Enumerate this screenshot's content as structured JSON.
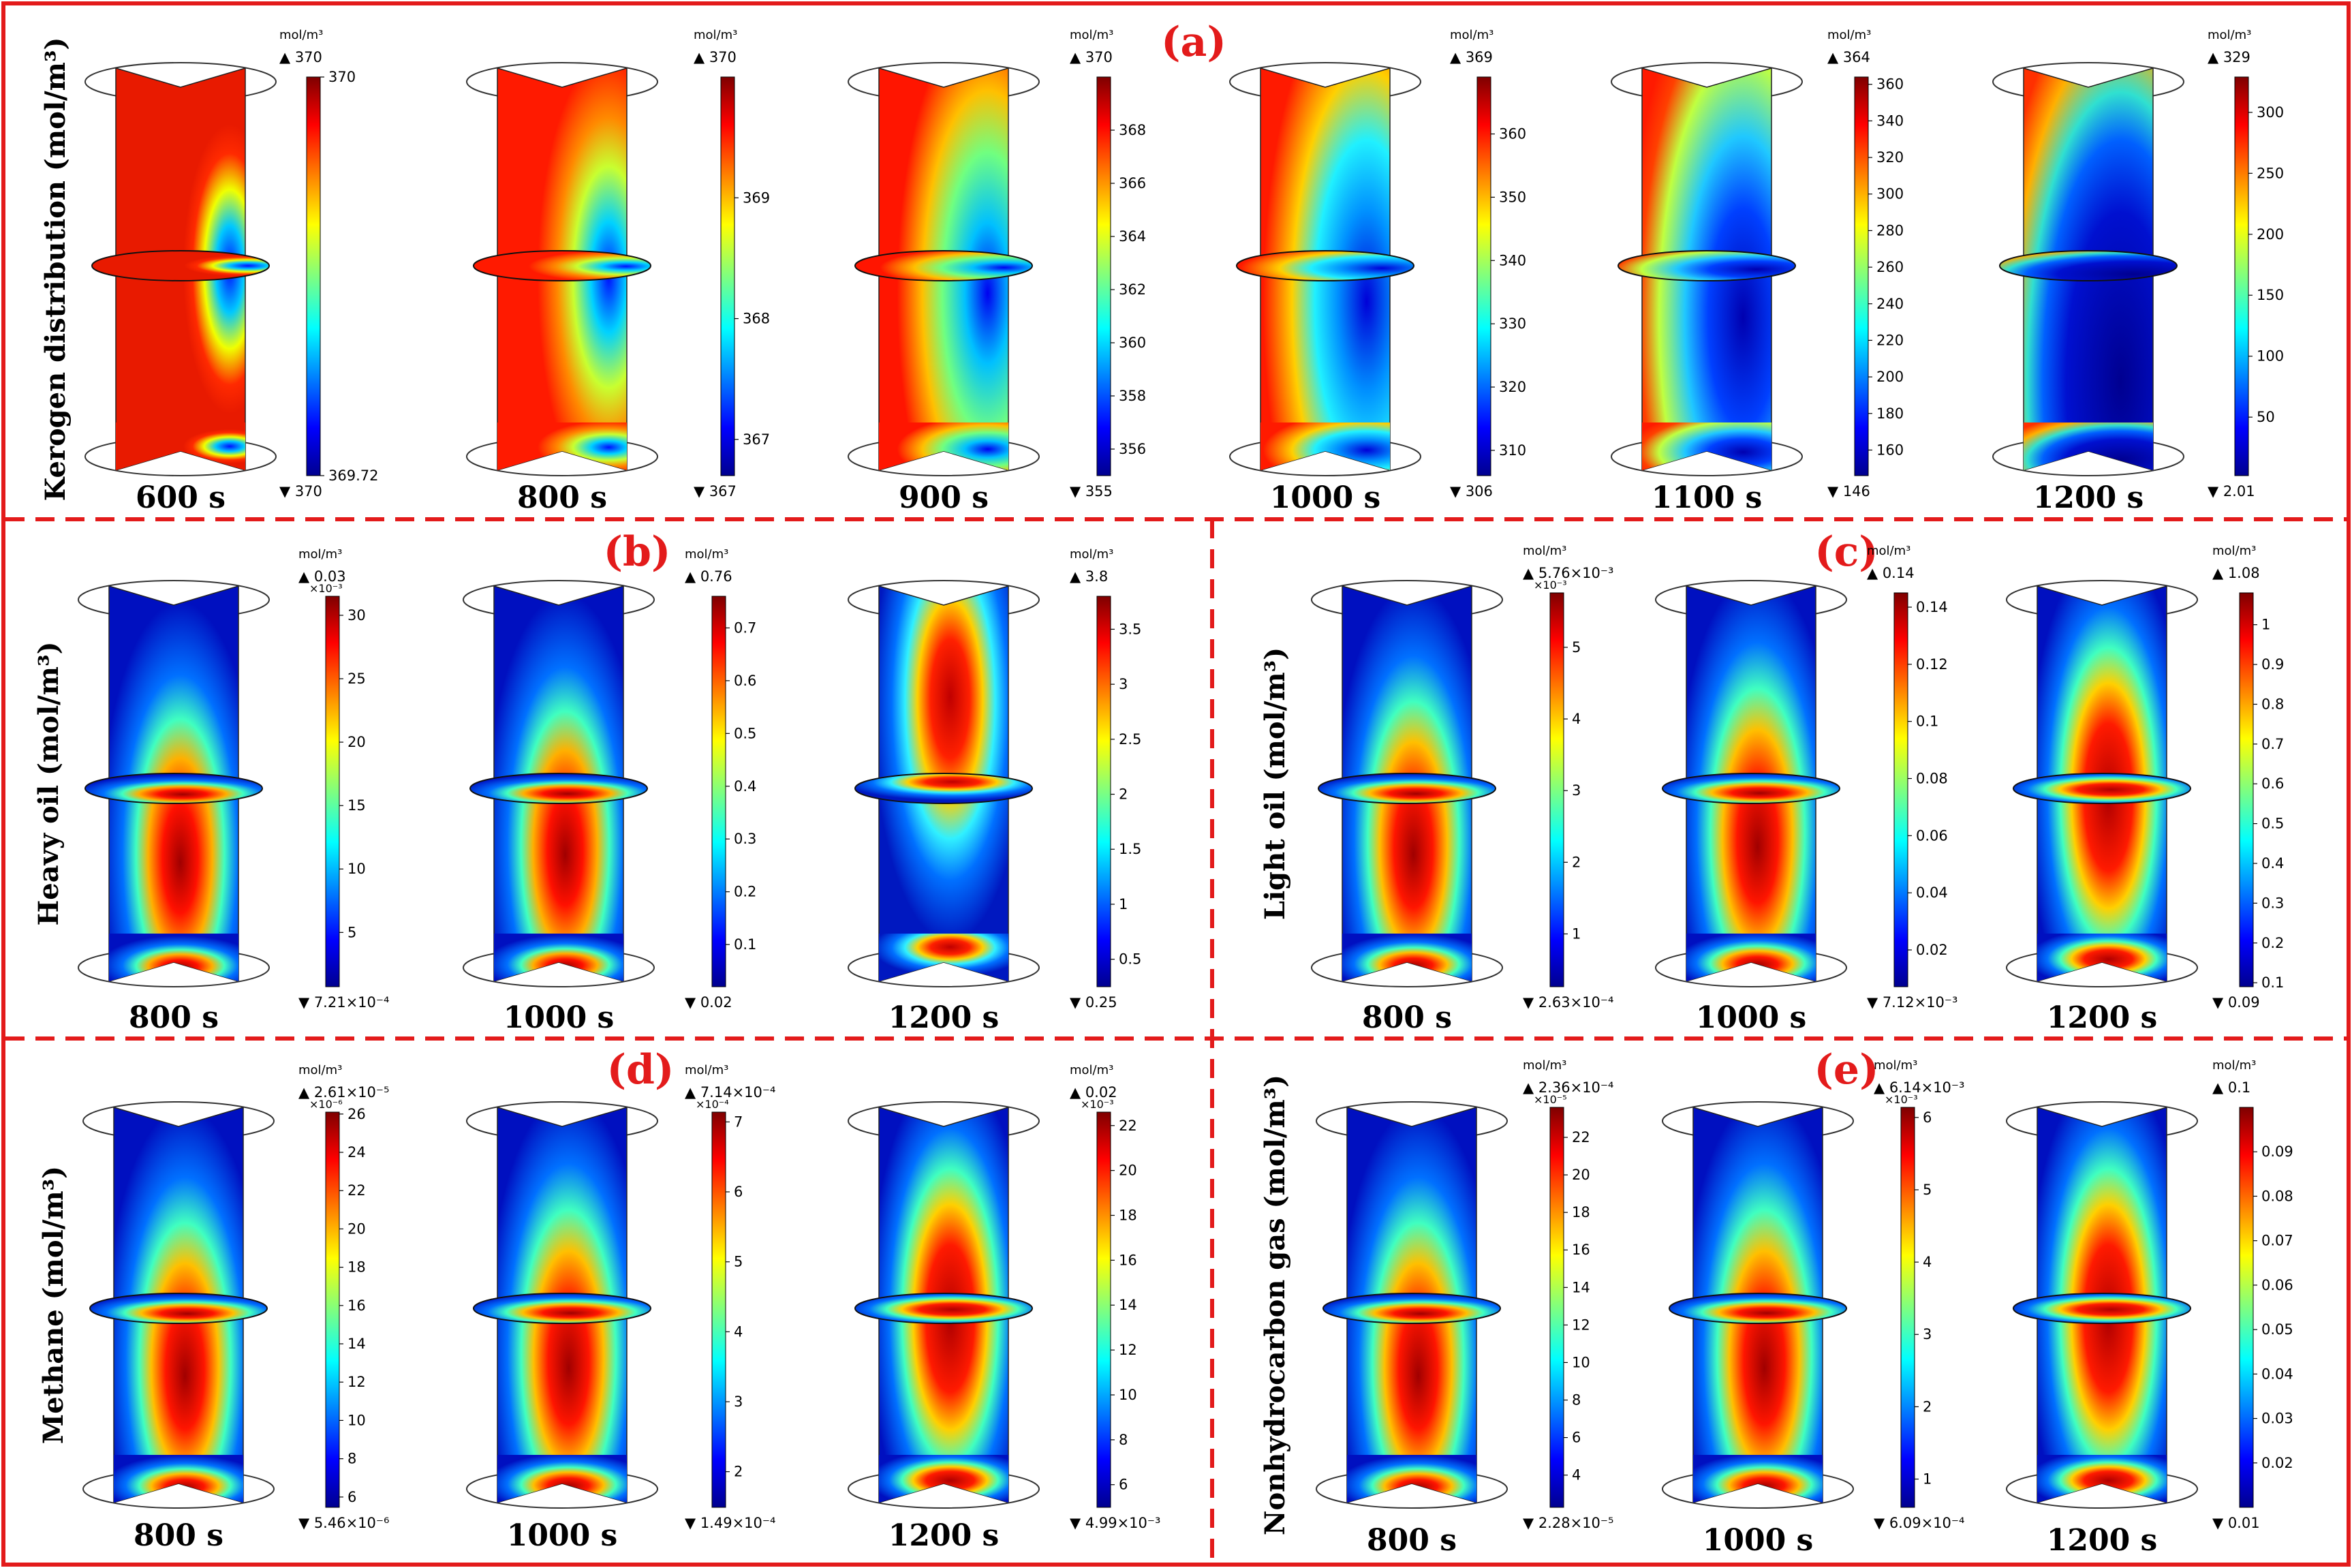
{
  "colors": {
    "frame": "#e31b1b",
    "label": "#e31b1b",
    "outline": "#333333"
  },
  "units": {
    "cbar": "mol/m³",
    "ylabel_unit": "(mol/m³)"
  },
  "panels": [
    {
      "id": "a",
      "label": "(a)",
      "ylabel": "Kerogen distribution (mol/m³)",
      "plots": [
        {
          "time": "600 s",
          "max": "370",
          "min": "370",
          "exp": "",
          "ticks": [
            {
              "v": 370,
              "t": "370"
            },
            {
              "v": 369.72,
              "t": "369.72"
            }
          ],
          "range": [
            369.72,
            370
          ],
          "field": "kero_600"
        },
        {
          "time": "800 s",
          "max": "370",
          "min": "367",
          "exp": "",
          "ticks": [
            {
              "v": 369,
              "t": "369"
            },
            {
              "v": 368,
              "t": "368"
            },
            {
              "v": 367,
              "t": "367"
            }
          ],
          "range": [
            366.7,
            370
          ],
          "field": "kero_800"
        },
        {
          "time": "900 s",
          "max": "370",
          "min": "355",
          "exp": "",
          "ticks": [
            {
              "v": 368,
              "t": "368"
            },
            {
              "v": 366,
              "t": "366"
            },
            {
              "v": 364,
              "t": "364"
            },
            {
              "v": 362,
              "t": "362"
            },
            {
              "v": 360,
              "t": "360"
            },
            {
              "v": 358,
              "t": "358"
            },
            {
              "v": 356,
              "t": "356"
            }
          ],
          "range": [
            355,
            370
          ],
          "field": "kero_900"
        },
        {
          "time": "1000 s",
          "max": "369",
          "min": "306",
          "exp": "",
          "ticks": [
            {
              "v": 360,
              "t": "360"
            },
            {
              "v": 350,
              "t": "350"
            },
            {
              "v": 340,
              "t": "340"
            },
            {
              "v": 330,
              "t": "330"
            },
            {
              "v": 320,
              "t": "320"
            },
            {
              "v": 310,
              "t": "310"
            }
          ],
          "range": [
            306,
            369
          ],
          "field": "kero_1000"
        },
        {
          "time": "1100 s",
          "max": "364",
          "min": "146",
          "exp": "",
          "ticks": [
            {
              "v": 360,
              "t": "360"
            },
            {
              "v": 340,
              "t": "340"
            },
            {
              "v": 320,
              "t": "320"
            },
            {
              "v": 300,
              "t": "300"
            },
            {
              "v": 280,
              "t": "280"
            },
            {
              "v": 260,
              "t": "260"
            },
            {
              "v": 240,
              "t": "240"
            },
            {
              "v": 220,
              "t": "220"
            },
            {
              "v": 200,
              "t": "200"
            },
            {
              "v": 180,
              "t": "180"
            },
            {
              "v": 160,
              "t": "160"
            }
          ],
          "range": [
            146,
            364
          ],
          "field": "kero_1100"
        },
        {
          "time": "1200 s",
          "max": "329",
          "min": "2.01",
          "exp": "",
          "ticks": [
            {
              "v": 300,
              "t": "300"
            },
            {
              "v": 250,
              "t": "250"
            },
            {
              "v": 200,
              "t": "200"
            },
            {
              "v": 150,
              "t": "150"
            },
            {
              "v": 100,
              "t": "100"
            },
            {
              "v": 50,
              "t": "50"
            }
          ],
          "range": [
            2.01,
            329
          ],
          "field": "kero_1200"
        }
      ]
    },
    {
      "id": "b",
      "label": "(b)",
      "ylabel": "Heavy oil (mol/m³)",
      "plots": [
        {
          "time": "800 s",
          "max": "0.03",
          "min": "7.21×10⁻⁴",
          "exp": "×10⁻³",
          "ticks": [
            {
              "v": 30,
              "t": "30"
            },
            {
              "v": 25,
              "t": "25"
            },
            {
              "v": 20,
              "t": "20"
            },
            {
              "v": 15,
              "t": "15"
            },
            {
              "v": 10,
              "t": "10"
            },
            {
              "v": 5,
              "t": "5"
            }
          ],
          "range": [
            0.72,
            31.5
          ],
          "field": "oil_800"
        },
        {
          "time": "1000 s",
          "max": "0.76",
          "min": "0.02",
          "exp": "",
          "ticks": [
            {
              "v": 0.7,
              "t": "0.7"
            },
            {
              "v": 0.6,
              "t": "0.6"
            },
            {
              "v": 0.5,
              "t": "0.5"
            },
            {
              "v": 0.4,
              "t": "0.4"
            },
            {
              "v": 0.3,
              "t": "0.3"
            },
            {
              "v": 0.2,
              "t": "0.2"
            },
            {
              "v": 0.1,
              "t": "0.1"
            }
          ],
          "range": [
            0.02,
            0.76
          ],
          "field": "oil_1000"
        },
        {
          "time": "1200 s",
          "max": "3.8",
          "min": "0.25",
          "exp": "",
          "ticks": [
            {
              "v": 3.5,
              "t": "3.5"
            },
            {
              "v": 3,
              "t": "3"
            },
            {
              "v": 2.5,
              "t": "2.5"
            },
            {
              "v": 2,
              "t": "2"
            },
            {
              "v": 1.5,
              "t": "1.5"
            },
            {
              "v": 1,
              "t": "1"
            },
            {
              "v": 0.5,
              "t": "0.5"
            }
          ],
          "range": [
            0.25,
            3.8
          ],
          "field": "oil_1200"
        }
      ]
    },
    {
      "id": "c",
      "label": "(c)",
      "ylabel": "Light oil (mol/m³)",
      "plots": [
        {
          "time": "800 s",
          "max": "5.76×10⁻³",
          "min": "2.63×10⁻⁴",
          "exp": "×10⁻³",
          "ticks": [
            {
              "v": 5,
              "t": "5"
            },
            {
              "v": 4,
              "t": "4"
            },
            {
              "v": 3,
              "t": "3"
            },
            {
              "v": 2,
              "t": "2"
            },
            {
              "v": 1,
              "t": "1"
            }
          ],
          "range": [
            0.263,
            5.76
          ],
          "field": "gas_800"
        },
        {
          "time": "1000 s",
          "max": "0.14",
          "min": "7.12×10⁻³",
          "exp": "",
          "ticks": [
            {
              "v": 0.14,
              "t": "0.14"
            },
            {
              "v": 0.12,
              "t": "0.12"
            },
            {
              "v": 0.1,
              "t": "0.1"
            },
            {
              "v": 0.08,
              "t": "0.08"
            },
            {
              "v": 0.06,
              "t": "0.06"
            },
            {
              "v": 0.04,
              "t": "0.04"
            },
            {
              "v": 0.02,
              "t": "0.02"
            }
          ],
          "range": [
            0.00712,
            0.145
          ],
          "field": "gas_1000"
        },
        {
          "time": "1200 s",
          "max": "1.08",
          "min": "0.09",
          "exp": "",
          "ticks": [
            {
              "v": 1,
              "t": "1"
            },
            {
              "v": 0.9,
              "t": "0.9"
            },
            {
              "v": 0.8,
              "t": "0.8"
            },
            {
              "v": 0.7,
              "t": "0.7"
            },
            {
              "v": 0.6,
              "t": "0.6"
            },
            {
              "v": 0.5,
              "t": "0.5"
            },
            {
              "v": 0.4,
              "t": "0.4"
            },
            {
              "v": 0.3,
              "t": "0.3"
            },
            {
              "v": 0.2,
              "t": "0.2"
            },
            {
              "v": 0.1,
              "t": "0.1"
            }
          ],
          "range": [
            0.09,
            1.08
          ],
          "field": "gas_1200"
        }
      ]
    },
    {
      "id": "d",
      "label": "(d)",
      "ylabel": "Methane (mol/m³)",
      "plots": [
        {
          "time": "800 s",
          "max": "2.61×10⁻⁵",
          "min": "5.46×10⁻⁶",
          "exp": "×10⁻⁶",
          "ticks": [
            {
              "v": 26,
              "t": "26"
            },
            {
              "v": 24,
              "t": "24"
            },
            {
              "v": 22,
              "t": "22"
            },
            {
              "v": 20,
              "t": "20"
            },
            {
              "v": 18,
              "t": "18"
            },
            {
              "v": 16,
              "t": "16"
            },
            {
              "v": 14,
              "t": "14"
            },
            {
              "v": 12,
              "t": "12"
            },
            {
              "v": 10,
              "t": "10"
            },
            {
              "v": 8,
              "t": "8"
            },
            {
              "v": 6,
              "t": "6"
            }
          ],
          "range": [
            5.46,
            26.1
          ],
          "field": "gas_800"
        },
        {
          "time": "1000 s",
          "max": "7.14×10⁻⁴",
          "min": "1.49×10⁻⁴",
          "exp": "×10⁻⁴",
          "ticks": [
            {
              "v": 7,
              "t": "7"
            },
            {
              "v": 6,
              "t": "6"
            },
            {
              "v": 5,
              "t": "5"
            },
            {
              "v": 4,
              "t": "4"
            },
            {
              "v": 3,
              "t": "3"
            },
            {
              "v": 2,
              "t": "2"
            }
          ],
          "range": [
            1.49,
            7.14
          ],
          "field": "gas_1000"
        },
        {
          "time": "1200 s",
          "max": "0.02",
          "min": "4.99×10⁻³",
          "exp": "×10⁻³",
          "ticks": [
            {
              "v": 22,
              "t": "22"
            },
            {
              "v": 20,
              "t": "20"
            },
            {
              "v": 18,
              "t": "18"
            },
            {
              "v": 16,
              "t": "16"
            },
            {
              "v": 14,
              "t": "14"
            },
            {
              "v": 12,
              "t": "12"
            },
            {
              "v": 10,
              "t": "10"
            },
            {
              "v": 8,
              "t": "8"
            },
            {
              "v": 6,
              "t": "6"
            }
          ],
          "range": [
            4.99,
            22.6
          ],
          "field": "gas_1200"
        }
      ]
    },
    {
      "id": "e",
      "label": "(e)",
      "ylabel": "Nonhydrocarbon gas (mol/m³)",
      "plots": [
        {
          "time": "800 s",
          "max": "2.36×10⁻⁴",
          "min": "2.28×10⁻⁵",
          "exp": "×10⁻⁵",
          "ticks": [
            {
              "v": 22,
              "t": "22"
            },
            {
              "v": 20,
              "t": "20"
            },
            {
              "v": 18,
              "t": "18"
            },
            {
              "v": 16,
              "t": "16"
            },
            {
              "v": 14,
              "t": "14"
            },
            {
              "v": 12,
              "t": "12"
            },
            {
              "v": 10,
              "t": "10"
            },
            {
              "v": 8,
              "t": "8"
            },
            {
              "v": 6,
              "t": "6"
            },
            {
              "v": 4,
              "t": "4"
            }
          ],
          "range": [
            2.28,
            23.6
          ],
          "field": "gas_800"
        },
        {
          "time": "1000 s",
          "max": "6.14×10⁻³",
          "min": "6.09×10⁻⁴",
          "exp": "×10⁻³",
          "ticks": [
            {
              "v": 6,
              "t": "6"
            },
            {
              "v": 5,
              "t": "5"
            },
            {
              "v": 4,
              "t": "4"
            },
            {
              "v": 3,
              "t": "3"
            },
            {
              "v": 2,
              "t": "2"
            },
            {
              "v": 1,
              "t": "1"
            }
          ],
          "range": [
            0.609,
            6.14
          ],
          "field": "gas_1000"
        },
        {
          "time": "1200 s",
          "max": "0.1",
          "min": "0.01",
          "exp": "",
          "ticks": [
            {
              "v": 0.09,
              "t": "0.09"
            },
            {
              "v": 0.08,
              "t": "0.08"
            },
            {
              "v": 0.07,
              "t": "0.07"
            },
            {
              "v": 0.06,
              "t": "0.06"
            },
            {
              "v": 0.05,
              "t": "0.05"
            },
            {
              "v": 0.04,
              "t": "0.04"
            },
            {
              "v": 0.03,
              "t": "0.03"
            },
            {
              "v": 0.02,
              "t": "0.02"
            }
          ],
          "range": [
            0.01,
            0.1
          ],
          "field": "gas_1200"
        }
      ]
    }
  ]
}
